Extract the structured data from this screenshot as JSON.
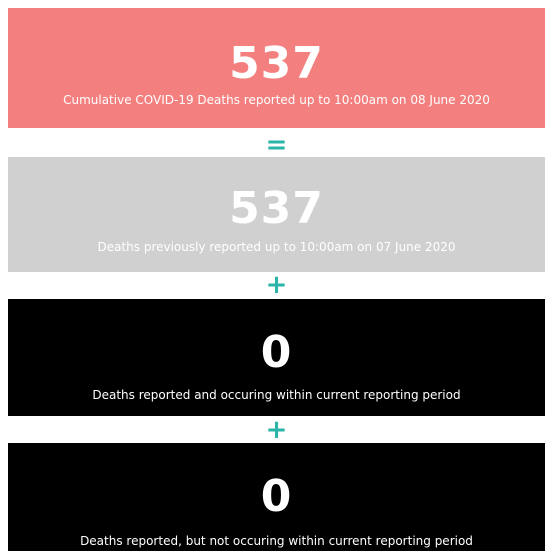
{
  "boxes": [
    {
      "value": 537,
      "caption": "Cumulative COVID-19 Deaths reported up to 10:00am on 08 June 2020"
    },
    {
      "value": 537,
      "caption": "Deaths previously reported up to 10:00am on 07 June 2020"
    },
    {
      "value": 0,
      "caption": "Deaths reported and occuring within current reporting period"
    },
    {
      "value": 0,
      "caption": "Deaths reported, but not occuring within current reporting period"
    }
  ],
  "operators": [
    "=",
    "+",
    "+"
  ]
}
